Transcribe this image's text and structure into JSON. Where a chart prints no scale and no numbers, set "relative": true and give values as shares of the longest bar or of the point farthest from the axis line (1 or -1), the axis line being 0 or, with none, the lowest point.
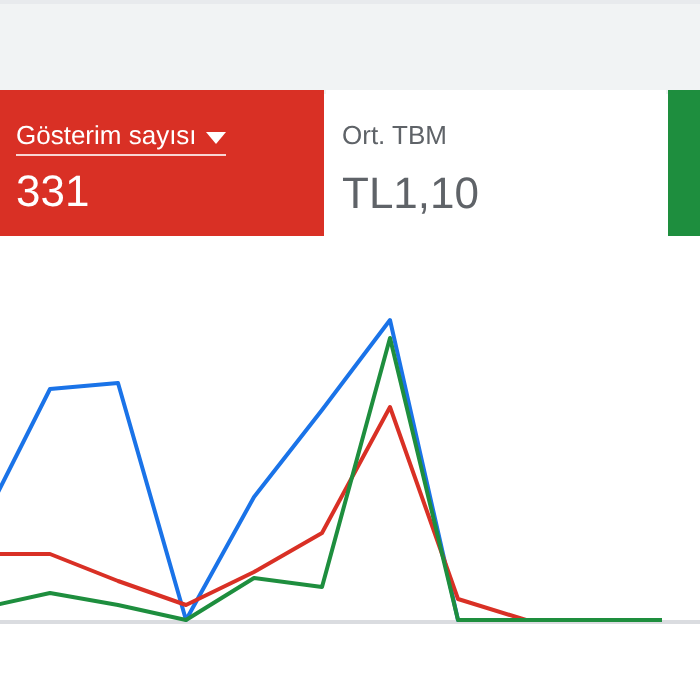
{
  "chart_data": [
    {
      "type": "other",
      "title": "Gösterim sayısı",
      "annotations": [
        "331"
      ],
      "color": "#d93025"
    },
    {
      "type": "other",
      "title": "Ort. TBM",
      "annotations": [
        "TL1,10"
      ]
    },
    {
      "type": "line",
      "relative": true,
      "categories": [
        null,
        null,
        null,
        null,
        null,
        null,
        null,
        null,
        null,
        null,
        null
      ],
      "series": [
        {
          "color": "#1a73e8",
          "values": [
            0.32,
            0.77,
            0.79,
            0,
            0.41,
            0.7,
            1,
            0,
            0,
            null,
            null
          ]
        },
        {
          "color": "#d93025",
          "values": [
            0.22,
            0.22,
            0.13,
            0.05,
            0.16,
            0.29,
            0.71,
            0.07,
            0,
            0,
            0
          ]
        },
        {
          "color": "#1e8e3e",
          "values": [
            0.04,
            0.09,
            0.05,
            0,
            0.14,
            0.11,
            0.94,
            0,
            0,
            0,
            0
          ]
        }
      ],
      "marker": "none",
      "legend": false
    }
  ]
}
